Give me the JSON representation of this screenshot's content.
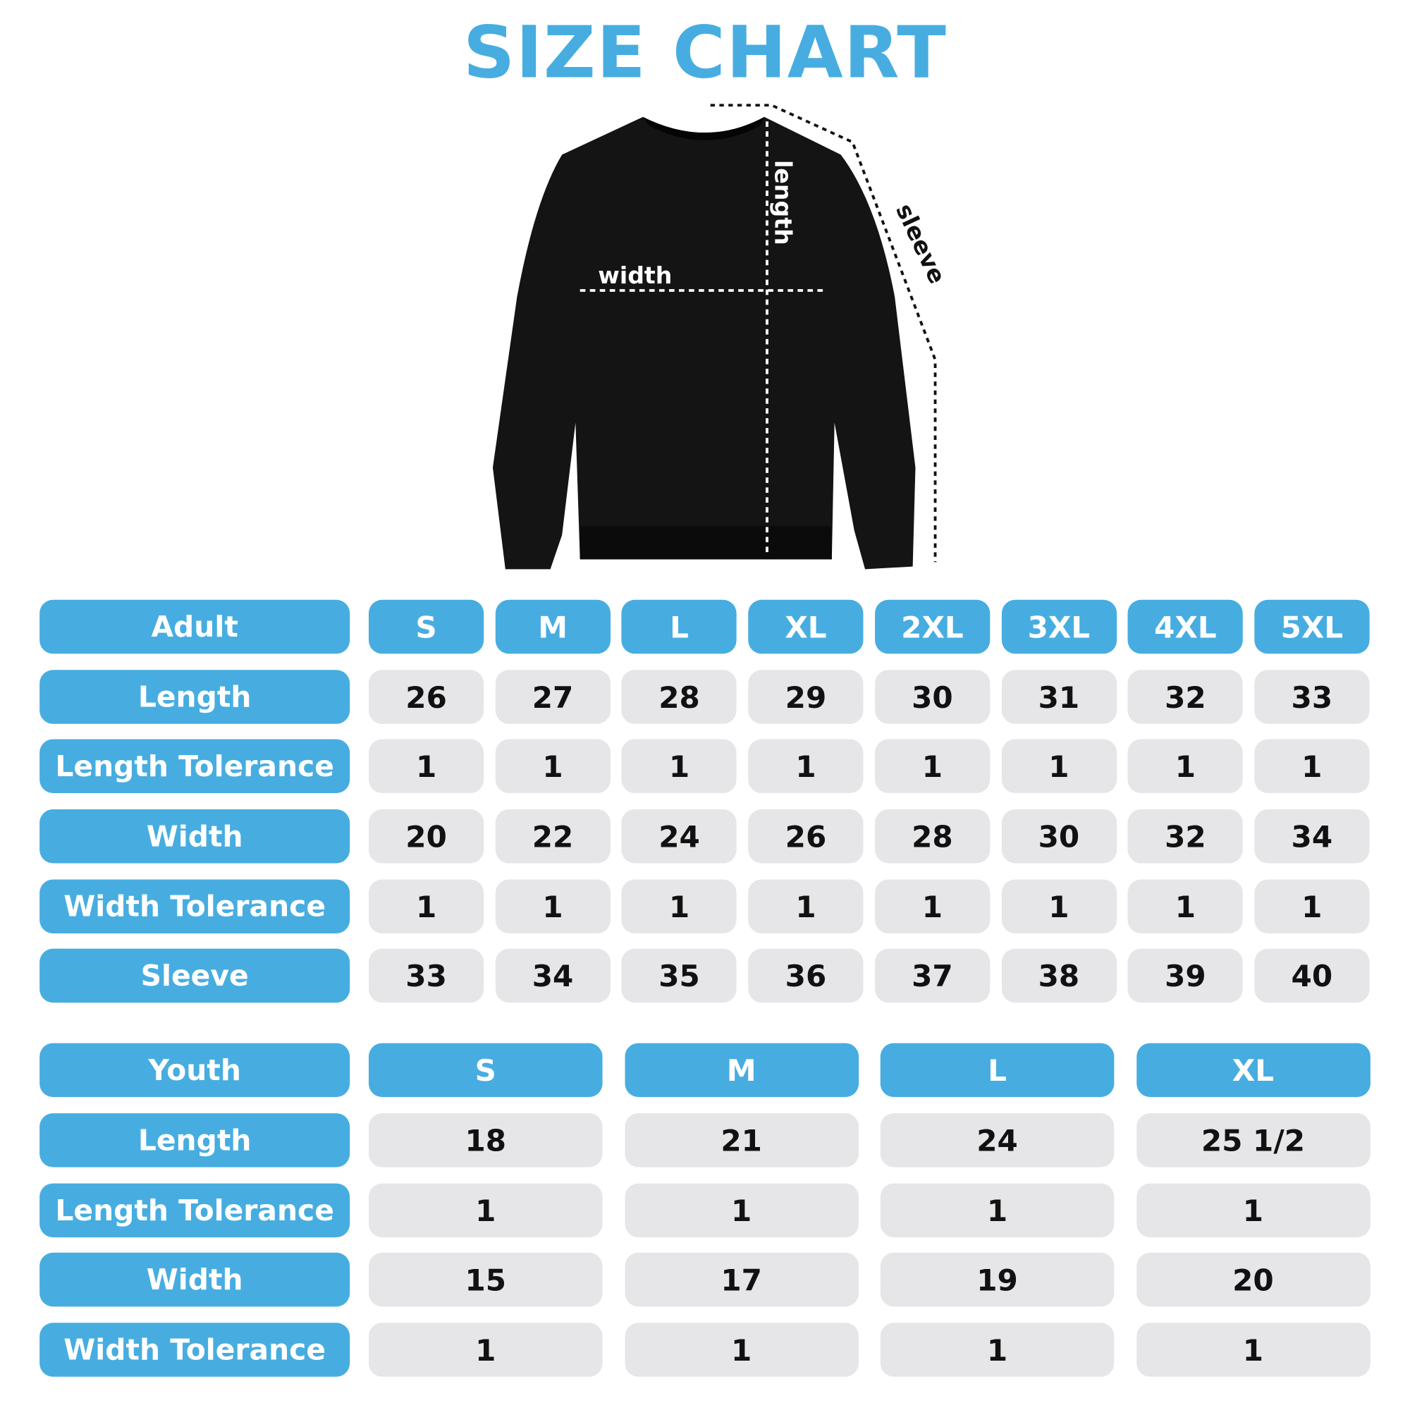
{
  "title": "SIZE CHART",
  "diagram": {
    "width_label": "width",
    "length_label": "length",
    "sleeve_label": "sleeve"
  },
  "colors": {
    "accent": "#47ADE0",
    "cell": "#E6E6E8",
    "garment": "#111111"
  },
  "adult": {
    "header": "Adult",
    "sizes": [
      "S",
      "M",
      "L",
      "XL",
      "2XL",
      "3XL",
      "4XL",
      "5XL"
    ],
    "rows": [
      {
        "label": "Length",
        "values": [
          "26",
          "27",
          "28",
          "29",
          "30",
          "31",
          "32",
          "33"
        ]
      },
      {
        "label": "Length Tolerance",
        "values": [
          "1",
          "1",
          "1",
          "1",
          "1",
          "1",
          "1",
          "1"
        ]
      },
      {
        "label": "Width",
        "values": [
          "20",
          "22",
          "24",
          "26",
          "28",
          "30",
          "32",
          "34"
        ]
      },
      {
        "label": "Width Tolerance",
        "values": [
          "1",
          "1",
          "1",
          "1",
          "1",
          "1",
          "1",
          "1"
        ]
      },
      {
        "label": "Sleeve",
        "values": [
          "33",
          "34",
          "35",
          "36",
          "37",
          "38",
          "39",
          "40"
        ]
      }
    ]
  },
  "youth": {
    "header": "Youth",
    "sizes": [
      "S",
      "M",
      "L",
      "XL"
    ],
    "rows": [
      {
        "label": "Length",
        "values": [
          "18",
          "21",
          "24",
          "25 1/2"
        ]
      },
      {
        "label": "Length Tolerance",
        "values": [
          "1",
          "1",
          "1",
          "1"
        ]
      },
      {
        "label": "Width",
        "values": [
          "15",
          "17",
          "19",
          "20"
        ]
      },
      {
        "label": "Width Tolerance",
        "values": [
          "1",
          "1",
          "1",
          "1"
        ]
      }
    ]
  }
}
